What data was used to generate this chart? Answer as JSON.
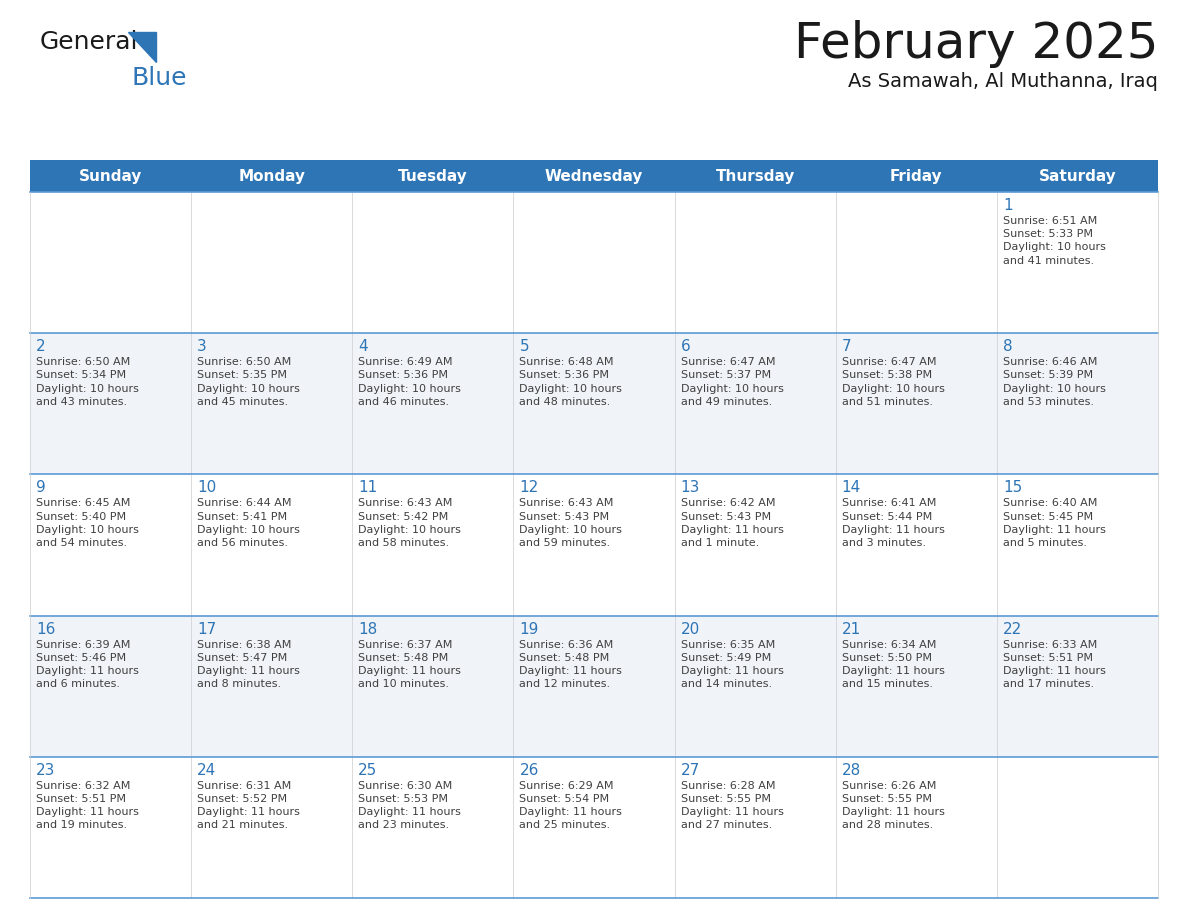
{
  "title": "February 2025",
  "subtitle": "As Samawah, Al Muthanna, Iraq",
  "header_color": "#2E75B6",
  "header_text_color": "#FFFFFF",
  "days_of_week": [
    "Sunday",
    "Monday",
    "Tuesday",
    "Wednesday",
    "Thursday",
    "Friday",
    "Saturday"
  ],
  "background_color": "#FFFFFF",
  "cell_bg_even": "#FFFFFF",
  "cell_bg_odd": "#F0F4F8",
  "border_color": "#5B9BD5",
  "day_number_color": "#2E75B6",
  "text_color": "#404040",
  "logo_general_color": "#1A1A1A",
  "logo_blue_color": "#2E75B6",
  "title_color": "#1A1A1A",
  "weeks": [
    [
      {
        "day": null,
        "info": null
      },
      {
        "day": null,
        "info": null
      },
      {
        "day": null,
        "info": null
      },
      {
        "day": null,
        "info": null
      },
      {
        "day": null,
        "info": null
      },
      {
        "day": null,
        "info": null
      },
      {
        "day": 1,
        "info": "Sunrise: 6:51 AM\nSunset: 5:33 PM\nDaylight: 10 hours\nand 41 minutes."
      }
    ],
    [
      {
        "day": 2,
        "info": "Sunrise: 6:50 AM\nSunset: 5:34 PM\nDaylight: 10 hours\nand 43 minutes."
      },
      {
        "day": 3,
        "info": "Sunrise: 6:50 AM\nSunset: 5:35 PM\nDaylight: 10 hours\nand 45 minutes."
      },
      {
        "day": 4,
        "info": "Sunrise: 6:49 AM\nSunset: 5:36 PM\nDaylight: 10 hours\nand 46 minutes."
      },
      {
        "day": 5,
        "info": "Sunrise: 6:48 AM\nSunset: 5:36 PM\nDaylight: 10 hours\nand 48 minutes."
      },
      {
        "day": 6,
        "info": "Sunrise: 6:47 AM\nSunset: 5:37 PM\nDaylight: 10 hours\nand 49 minutes."
      },
      {
        "day": 7,
        "info": "Sunrise: 6:47 AM\nSunset: 5:38 PM\nDaylight: 10 hours\nand 51 minutes."
      },
      {
        "day": 8,
        "info": "Sunrise: 6:46 AM\nSunset: 5:39 PM\nDaylight: 10 hours\nand 53 minutes."
      }
    ],
    [
      {
        "day": 9,
        "info": "Sunrise: 6:45 AM\nSunset: 5:40 PM\nDaylight: 10 hours\nand 54 minutes."
      },
      {
        "day": 10,
        "info": "Sunrise: 6:44 AM\nSunset: 5:41 PM\nDaylight: 10 hours\nand 56 minutes."
      },
      {
        "day": 11,
        "info": "Sunrise: 6:43 AM\nSunset: 5:42 PM\nDaylight: 10 hours\nand 58 minutes."
      },
      {
        "day": 12,
        "info": "Sunrise: 6:43 AM\nSunset: 5:43 PM\nDaylight: 10 hours\nand 59 minutes."
      },
      {
        "day": 13,
        "info": "Sunrise: 6:42 AM\nSunset: 5:43 PM\nDaylight: 11 hours\nand 1 minute."
      },
      {
        "day": 14,
        "info": "Sunrise: 6:41 AM\nSunset: 5:44 PM\nDaylight: 11 hours\nand 3 minutes."
      },
      {
        "day": 15,
        "info": "Sunrise: 6:40 AM\nSunset: 5:45 PM\nDaylight: 11 hours\nand 5 minutes."
      }
    ],
    [
      {
        "day": 16,
        "info": "Sunrise: 6:39 AM\nSunset: 5:46 PM\nDaylight: 11 hours\nand 6 minutes."
      },
      {
        "day": 17,
        "info": "Sunrise: 6:38 AM\nSunset: 5:47 PM\nDaylight: 11 hours\nand 8 minutes."
      },
      {
        "day": 18,
        "info": "Sunrise: 6:37 AM\nSunset: 5:48 PM\nDaylight: 11 hours\nand 10 minutes."
      },
      {
        "day": 19,
        "info": "Sunrise: 6:36 AM\nSunset: 5:48 PM\nDaylight: 11 hours\nand 12 minutes."
      },
      {
        "day": 20,
        "info": "Sunrise: 6:35 AM\nSunset: 5:49 PM\nDaylight: 11 hours\nand 14 minutes."
      },
      {
        "day": 21,
        "info": "Sunrise: 6:34 AM\nSunset: 5:50 PM\nDaylight: 11 hours\nand 15 minutes."
      },
      {
        "day": 22,
        "info": "Sunrise: 6:33 AM\nSunset: 5:51 PM\nDaylight: 11 hours\nand 17 minutes."
      }
    ],
    [
      {
        "day": 23,
        "info": "Sunrise: 6:32 AM\nSunset: 5:51 PM\nDaylight: 11 hours\nand 19 minutes."
      },
      {
        "day": 24,
        "info": "Sunrise: 6:31 AM\nSunset: 5:52 PM\nDaylight: 11 hours\nand 21 minutes."
      },
      {
        "day": 25,
        "info": "Sunrise: 6:30 AM\nSunset: 5:53 PM\nDaylight: 11 hours\nand 23 minutes."
      },
      {
        "day": 26,
        "info": "Sunrise: 6:29 AM\nSunset: 5:54 PM\nDaylight: 11 hours\nand 25 minutes."
      },
      {
        "day": 27,
        "info": "Sunrise: 6:28 AM\nSunset: 5:55 PM\nDaylight: 11 hours\nand 27 minutes."
      },
      {
        "day": 28,
        "info": "Sunrise: 6:26 AM\nSunset: 5:55 PM\nDaylight: 11 hours\nand 28 minutes."
      },
      {
        "day": null,
        "info": null
      }
    ]
  ]
}
